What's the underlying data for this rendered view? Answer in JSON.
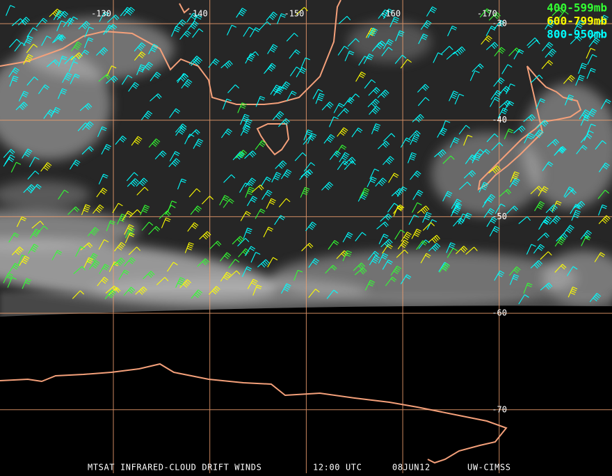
{
  "map": {
    "longitude_labels": [
      "-130",
      "-140",
      "-150",
      "-160",
      "-170"
    ],
    "latitude_labels": [
      "-30",
      "-40",
      "-50",
      "-60",
      "-70"
    ]
  },
  "legend": [
    {
      "label": "400-599mb",
      "color": "#33ff33"
    },
    {
      "label": "600-799mb",
      "color": "#ffff00"
    },
    {
      "label": "800-950mb",
      "color": "#00ffff"
    }
  ],
  "footer": {
    "product": "MTSAT INFRARED-CLOUD DRIFT WINDS",
    "time": "12:00 UTC",
    "date": "08JUN12",
    "source": "UW-CIMSS"
  }
}
